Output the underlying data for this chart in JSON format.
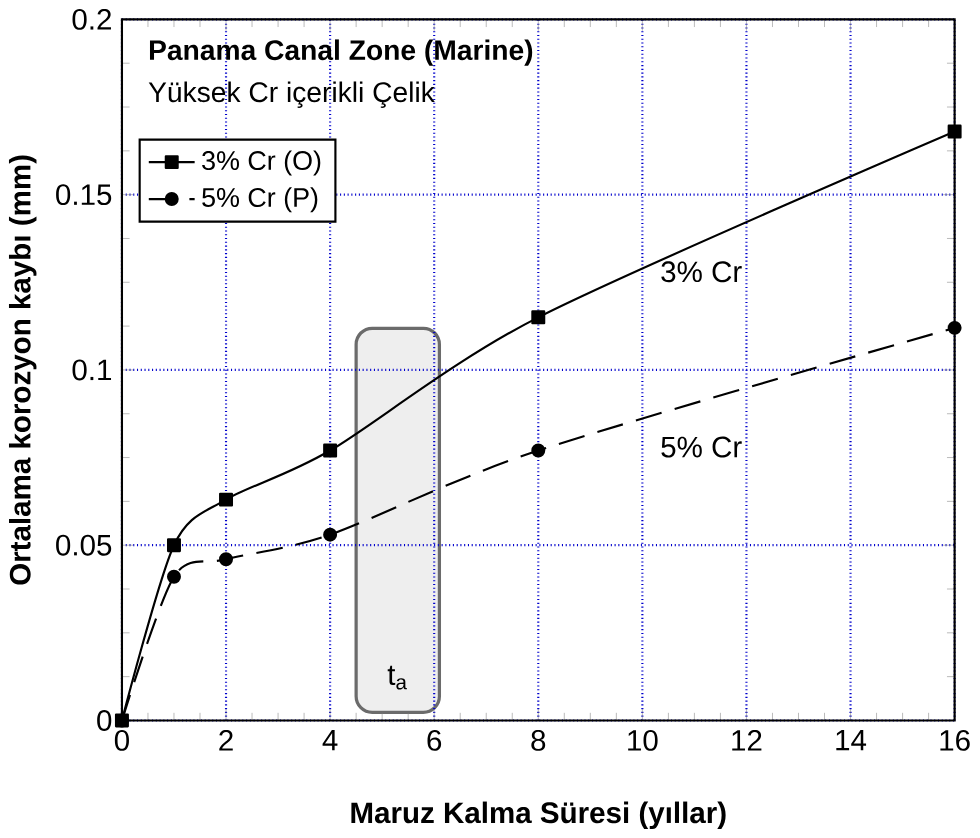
{
  "chart_data": {
    "type": "line",
    "title": "Panama Canal Zone (Marine)",
    "subtitle": "Yüksek Cr içerikli Çelik",
    "xlabel": "Maruz Kalma Süresi (yıllar)",
    "ylabel": "Ortalama korozyon kaybı (mm)",
    "xlim": [
      0,
      16
    ],
    "ylim": [
      0,
      0.2
    ],
    "xticks": [
      0,
      2,
      4,
      6,
      8,
      10,
      12,
      14,
      16
    ],
    "yticks": [
      0,
      0.05,
      0.1,
      0.15,
      0.2
    ],
    "grid": true,
    "legend": "top left",
    "series": [
      {
        "name": "3% Cr (O)",
        "color": "#000000",
        "marker": "square",
        "line_style": "solid",
        "x": [
          0,
          1,
          2,
          4,
          8,
          16
        ],
        "values": [
          0,
          0.05,
          0.063,
          0.077,
          0.115,
          0.168
        ]
      },
      {
        "name": "5% Cr (P)",
        "color": "#000000",
        "marker": "circle",
        "line_style": "dashed",
        "x": [
          0,
          1,
          2,
          4,
          8,
          16
        ],
        "values": [
          0,
          0.041,
          0.046,
          0.053,
          0.077,
          0.112
        ]
      }
    ],
    "annotations": [
      "3% Cr",
      "5% Cr"
    ],
    "bands": [
      {
        "axis": "x",
        "from": 4.5,
        "to": 6.1,
        "label": "t$_{a}$",
        "color": "#eeeeee"
      }
    ]
  }
}
